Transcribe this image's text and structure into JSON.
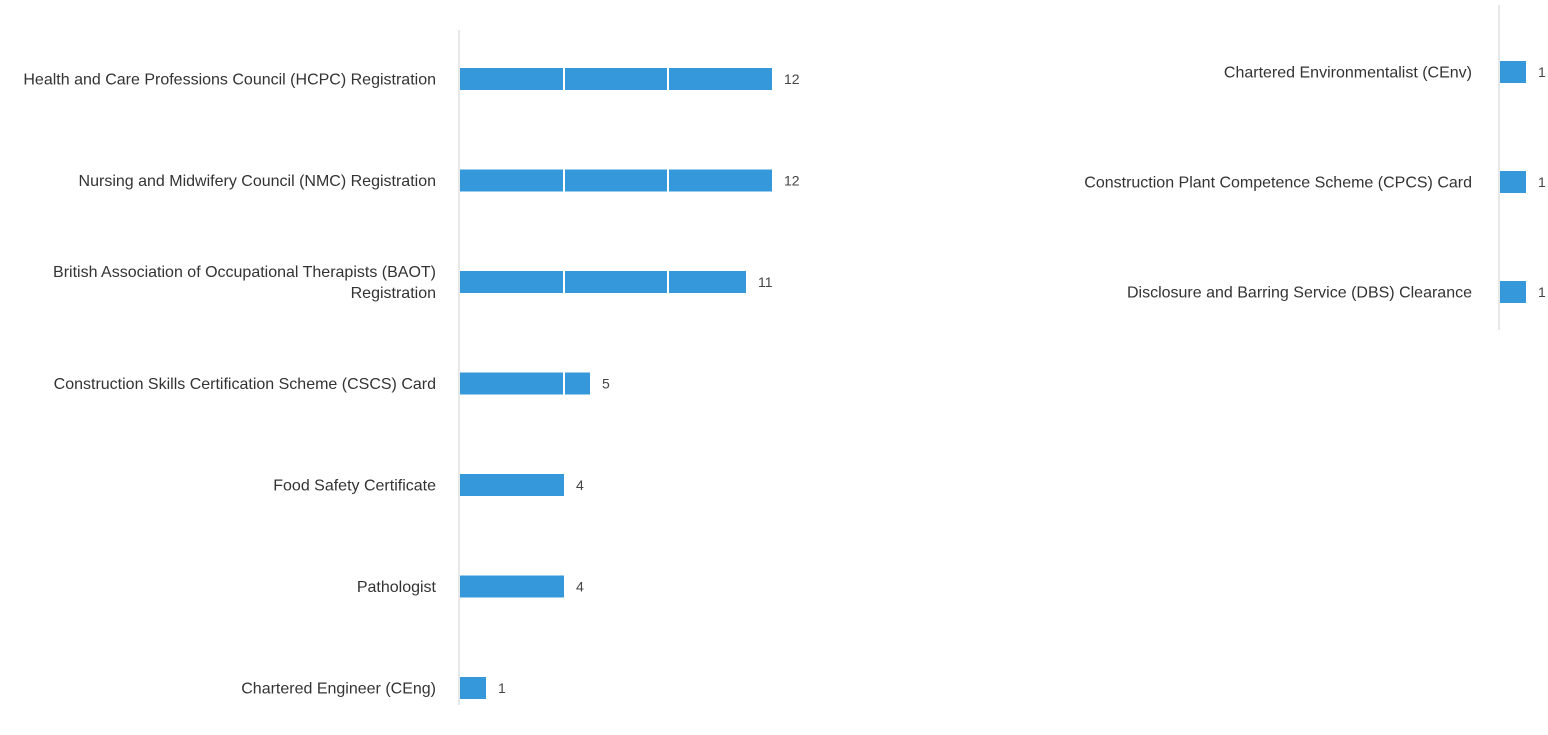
{
  "colors": {
    "bar": "#3498db",
    "divider": "#ffffff",
    "axis": "#e8e8e8",
    "label": "#333333",
    "value": "#444444"
  },
  "chart_data": [
    {
      "type": "bar",
      "orientation": "horizontal",
      "categories": [
        "Health and Care Professions Council (HCPC) Registration",
        "Nursing and Midwifery Council (NMC) Registration",
        "British Association of Occupational Therapists (BAOT) Registration",
        "Construction Skills Certification Scheme (CSCS) Card",
        "Food Safety Certificate",
        "Pathologist",
        "Chartered Engineer (CEng)"
      ],
      "values": [
        12,
        12,
        11,
        5,
        4,
        4,
        1
      ],
      "xlim": [
        0,
        12
      ],
      "grid": true,
      "legend": "none"
    },
    {
      "type": "bar",
      "orientation": "horizontal",
      "categories": [
        "Chartered Environmentalist (CEnv)",
        "Construction Plant Competence Scheme (CPCS) Card",
        "Disclosure and Barring Service (DBS) Clearance"
      ],
      "values": [
        1,
        1,
        1
      ],
      "xlim": [
        0,
        12
      ],
      "grid": false,
      "legend": "none"
    }
  ]
}
